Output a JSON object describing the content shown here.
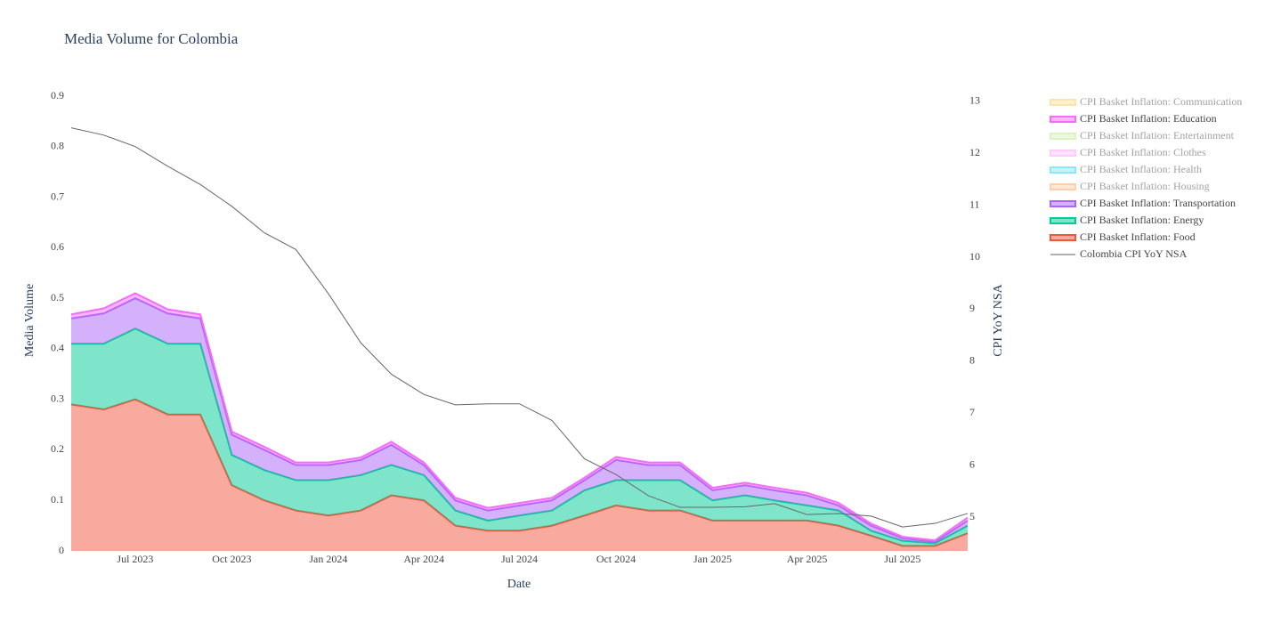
{
  "chart_data": {
    "type": "stacked-area",
    "title": "Media Volume for Colombia",
    "x_label": "Date",
    "y_label": "Media Volume",
    "y2_label": "CPI YoY NSA",
    "x": [
      "2023-05",
      "2023-06",
      "2023-07",
      "2023-08",
      "2023-09",
      "2023-10",
      "2023-11",
      "2023-12",
      "2024-01",
      "2024-02",
      "2024-03",
      "2024-04",
      "2024-05",
      "2024-06",
      "2024-07",
      "2024-08",
      "2024-09",
      "2024-10",
      "2024-11",
      "2024-12",
      "2025-01",
      "2025-02",
      "2025-03",
      "2025-04",
      "2025-05",
      "2025-06",
      "2025-07",
      "2025-08",
      "2025-09"
    ],
    "xlim": [
      "2023-05",
      "2025-09"
    ],
    "xticks": [
      {
        "value": "2023-07",
        "label": "Jul 2023"
      },
      {
        "value": "2023-10",
        "label": "Oct 2023"
      },
      {
        "value": "2024-01",
        "label": "Jan 2024"
      },
      {
        "value": "2024-04",
        "label": "Apr 2024"
      },
      {
        "value": "2024-07",
        "label": "Jul 2024"
      },
      {
        "value": "2024-10",
        "label": "Oct 2024"
      },
      {
        "value": "2025-01",
        "label": "Jan 2025"
      },
      {
        "value": "2025-04",
        "label": "Apr 2025"
      },
      {
        "value": "2025-07",
        "label": "Jul 2025"
      }
    ],
    "ylim": [
      0,
      0.9
    ],
    "yticks": [
      0,
      0.1,
      0.2,
      0.3,
      0.4,
      0.5,
      0.6,
      0.7,
      0.8,
      0.9
    ],
    "y2lim": [
      4.35,
      13.1
    ],
    "y2ticks": [
      5,
      6,
      7,
      8,
      9,
      10,
      11,
      12,
      13
    ],
    "legend": "right",
    "series": [
      {
        "name": "CPI Basket Inflation: Communication",
        "color": "#fecb52",
        "visible": "legendonly"
      },
      {
        "name": "CPI Basket Inflation: Education",
        "color": "#f26df9",
        "values": [
          0.008,
          0.01,
          0.01,
          0.008,
          0.008,
          0.006,
          0.006,
          0.005,
          0.005,
          0.005,
          0.006,
          0.005,
          0.005,
          0.005,
          0.005,
          0.005,
          0.005,
          0.006,
          0.005,
          0.005,
          0.005,
          0.005,
          0.005,
          0.005,
          0.005,
          0.004,
          0.003,
          0.003,
          0.006
        ]
      },
      {
        "name": "CPI Basket Inflation: Entertainment",
        "color": "#b6e880",
        "visible": "legendonly"
      },
      {
        "name": "CPI Basket Inflation: Clothes",
        "color": "#ff97ff",
        "visible": "legendonly"
      },
      {
        "name": "CPI Basket Inflation: Health",
        "color": "#19d3f3",
        "visible": "legendonly"
      },
      {
        "name": "CPI Basket Inflation: Housing",
        "color": "#ffa15a",
        "visible": "legendonly"
      },
      {
        "name": "CPI Basket Inflation: Transportation",
        "color": "#ab63fa",
        "values": [
          0.05,
          0.06,
          0.06,
          0.06,
          0.05,
          0.04,
          0.04,
          0.03,
          0.03,
          0.03,
          0.04,
          0.02,
          0.02,
          0.02,
          0.02,
          0.02,
          0.02,
          0.04,
          0.03,
          0.03,
          0.02,
          0.02,
          0.02,
          0.02,
          0.01,
          0.01,
          0.005,
          0.003,
          0.01
        ]
      },
      {
        "name": "CPI Basket Inflation: Energy",
        "color": "#00cc96",
        "values": [
          0.12,
          0.13,
          0.14,
          0.14,
          0.14,
          0.06,
          0.06,
          0.06,
          0.07,
          0.07,
          0.06,
          0.05,
          0.03,
          0.02,
          0.03,
          0.03,
          0.05,
          0.05,
          0.06,
          0.06,
          0.04,
          0.05,
          0.04,
          0.03,
          0.03,
          0.01,
          0.01,
          0.005,
          0.015
        ]
      },
      {
        "name": "CPI Basket Inflation: Food",
        "color": "#ef553b",
        "values": [
          0.29,
          0.28,
          0.3,
          0.27,
          0.27,
          0.13,
          0.1,
          0.08,
          0.07,
          0.08,
          0.11,
          0.1,
          0.05,
          0.04,
          0.04,
          0.05,
          0.07,
          0.09,
          0.08,
          0.08,
          0.06,
          0.06,
          0.06,
          0.06,
          0.05,
          0.03,
          0.01,
          0.01,
          0.035
        ]
      },
      {
        "name": "Colombia CPI YoY NSA",
        "color": "#666666",
        "axis": "y2",
        "values": [
          12.49,
          12.35,
          12.13,
          11.75,
          11.4,
          10.98,
          10.47,
          10.15,
          9.3,
          8.35,
          7.75,
          7.36,
          7.16,
          7.18,
          7.18,
          6.86,
          6.12,
          5.82,
          5.41,
          5.19,
          5.19,
          5.2,
          5.26,
          5.05,
          5.07,
          5.02,
          4.81,
          4.88,
          5.07
        ]
      }
    ]
  }
}
